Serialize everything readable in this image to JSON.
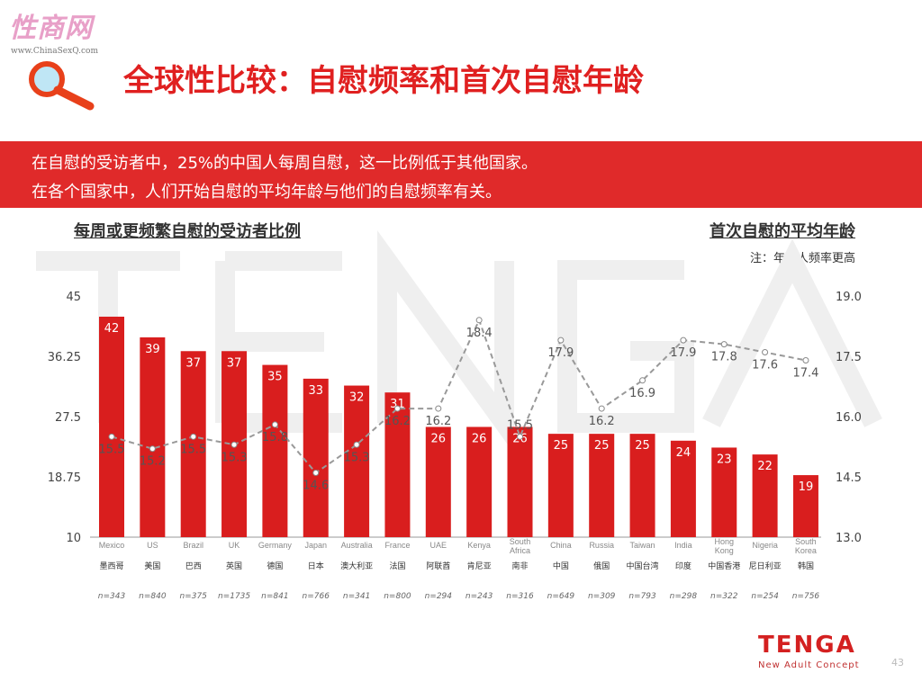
{
  "header": {
    "site_logo": "性商网",
    "site_url": "www.ChinaSexQ.com",
    "title": "全球性比较：自慰频率和首次自慰年龄"
  },
  "banner": {
    "line1": "在自慰的受访者中，25%的中国人每周自慰，这一比例低于其他国家。",
    "line2": "在各个国家中，人们开始自慰的平均年龄与他们的自慰频率有关。"
  },
  "footer": {
    "brand": "TENGA",
    "brand_sub": "New Adult Concept",
    "page": "43",
    "watermark": "TENGA"
  },
  "chart_data": {
    "type": "bar+line",
    "left_title": "每周或更频繁自慰的受访者比例",
    "left_subtitle": "自慰的受访者",
    "right_title": "首次自慰的平均年龄",
    "right_subtitle": "注：年轻人频率更高",
    "left_ticks": [
      "45",
      "36.25",
      "27.5",
      "18.75",
      "10"
    ],
    "left_ylim": [
      10,
      45
    ],
    "right_ticks": [
      "19.0",
      "17.5",
      "16.0",
      "14.5",
      "13.0"
    ],
    "right_ylim": [
      13,
      19
    ],
    "categories": [
      "Mexico",
      "US",
      "Brazil",
      "UK",
      "Germany",
      "Japan",
      "Australia",
      "France",
      "UAE",
      "Kenya",
      "South Africa",
      "China",
      "Russia",
      "Taiwan",
      "India",
      "Hong Kong",
      "Nigeria",
      "South Korea"
    ],
    "categories_cn": [
      "墨西哥",
      "美国",
      "巴西",
      "英国",
      "德国",
      "日本",
      "澳大利亚",
      "法国",
      "阿联酋",
      "肯尼亚",
      "南非",
      "中国",
      "俄国",
      "中国台湾",
      "印度",
      "中国香港",
      "尼日利亚",
      "韩国"
    ],
    "n": [
      "n=343",
      "n=840",
      "n=375",
      "n=1735",
      "n=841",
      "n=766",
      "n=341",
      "n=800",
      "n=294",
      "n=243",
      "n=316",
      "n=649",
      "n=309",
      "n=793",
      "n=298",
      "n=322",
      "n=254",
      "n=756"
    ],
    "series": [
      {
        "name": "每周或更频繁自慰的受访者比例",
        "type": "bar",
        "color": "#d91e1e",
        "values": [
          42,
          39,
          37,
          37,
          35,
          33,
          32,
          31,
          26,
          26,
          26,
          25,
          25,
          25,
          24,
          23,
          22,
          19
        ]
      },
      {
        "name": "首次自慰的平均年龄",
        "type": "line",
        "color": "#999999",
        "values": [
          15.5,
          15.2,
          15.5,
          15.3,
          15.8,
          14.6,
          15.3,
          16.2,
          16.2,
          18.4,
          15.5,
          17.9,
          16.2,
          16.9,
          17.9,
          17.8,
          17.6,
          17.4
        ]
      }
    ]
  }
}
